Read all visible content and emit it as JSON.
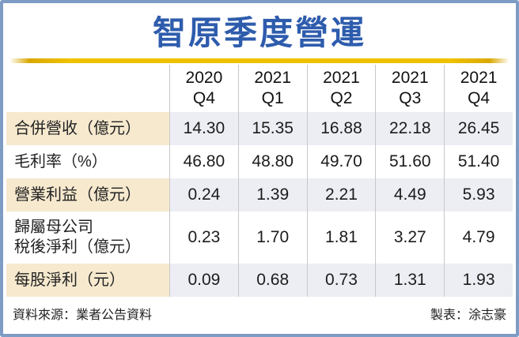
{
  "title": "智原季度營運",
  "table": {
    "columns": [
      "2020\nQ4",
      "2021\nQ1",
      "2021\nQ2",
      "2021\nQ3",
      "2021\nQ4"
    ],
    "rows": [
      {
        "label": "合併營收（億元）",
        "values": [
          "14.30",
          "15.35",
          "16.88",
          "22.18",
          "26.45"
        ],
        "highlight": true
      },
      {
        "label": "毛利率（%）",
        "values": [
          "46.80",
          "48.80",
          "49.70",
          "51.60",
          "51.40"
        ],
        "highlight": false
      },
      {
        "label": "營業利益（億元）",
        "values": [
          "0.24",
          "1.39",
          "2.21",
          "4.49",
          "5.93"
        ],
        "highlight": true
      },
      {
        "label": "歸屬母公司\n稅後淨利（億元）",
        "values": [
          "0.23",
          "1.70",
          "1.81",
          "3.27",
          "4.79"
        ],
        "highlight": false
      },
      {
        "label": "每股淨利（元）",
        "values": [
          "0.09",
          "0.68",
          "0.73",
          "1.31",
          "1.93"
        ],
        "highlight": true
      }
    ]
  },
  "footer": {
    "source": "資料來源：業者公告資料",
    "credit": "製表：涂志豪"
  },
  "colors": {
    "title_blue": "#2e5cad",
    "gold_rule": "#eec200",
    "label_highlight": "#f6e9ce",
    "value_highlight": "#edeef4",
    "frame_border": "#7e9cc4",
    "divider": "#c8c8c8"
  },
  "chart_data": {
    "type": "table",
    "title": "智原季度營運",
    "categories": [
      "2020 Q4",
      "2021 Q1",
      "2021 Q2",
      "2021 Q3",
      "2021 Q4"
    ],
    "series": [
      {
        "name": "合併營收（億元）",
        "values": [
          14.3,
          15.35,
          16.88,
          22.18,
          26.45
        ]
      },
      {
        "name": "毛利率（%）",
        "values": [
          46.8,
          48.8,
          49.7,
          51.6,
          51.4
        ]
      },
      {
        "name": "營業利益（億元）",
        "values": [
          0.24,
          1.39,
          2.21,
          4.49,
          5.93
        ]
      },
      {
        "name": "歸屬母公司稅後淨利（億元）",
        "values": [
          0.23,
          1.7,
          1.81,
          3.27,
          4.79
        ]
      },
      {
        "name": "每股淨利（元）",
        "values": [
          0.09,
          0.68,
          0.73,
          1.31,
          1.93
        ]
      }
    ],
    "source": "業者公告資料",
    "credit": "涂志豪"
  }
}
